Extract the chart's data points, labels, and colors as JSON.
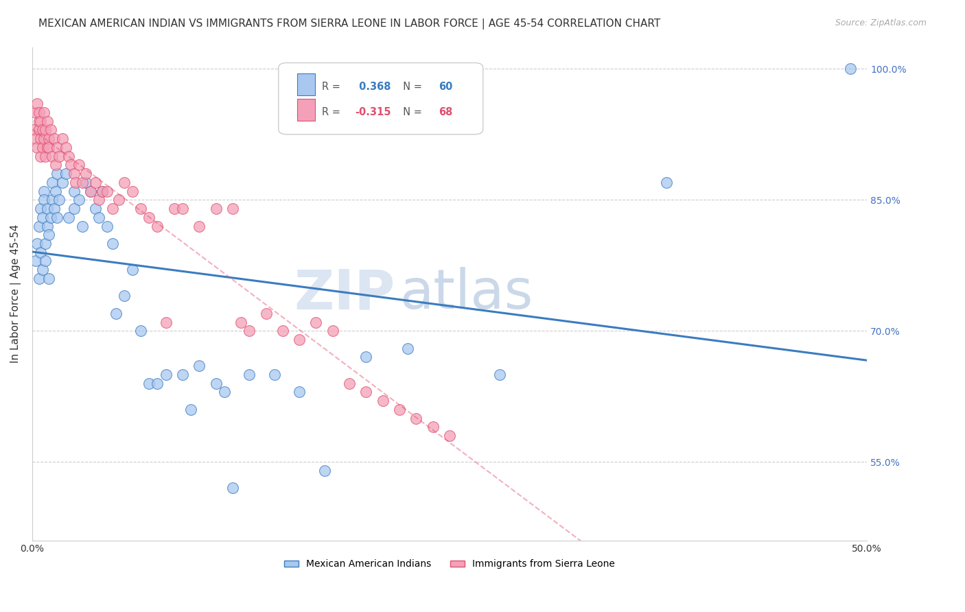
{
  "title": "MEXICAN AMERICAN INDIAN VS IMMIGRANTS FROM SIERRA LEONE IN LABOR FORCE | AGE 45-54 CORRELATION CHART",
  "source": "Source: ZipAtlas.com",
  "ylabel": "In Labor Force | Age 45-54",
  "xmin": 0.0,
  "xmax": 0.5,
  "ymin": 0.46,
  "ymax": 1.025,
  "yticks": [
    0.55,
    0.7,
    0.85,
    1.0
  ],
  "ytick_labels": [
    "55.0%",
    "70.0%",
    "85.0%",
    "100.0%"
  ],
  "xticks": [
    0.0,
    0.1,
    0.2,
    0.3,
    0.4,
    0.5
  ],
  "legend_blue_label": "Mexican American Indians",
  "legend_pink_label": "Immigrants from Sierra Leone",
  "R_blue": 0.368,
  "N_blue": 60,
  "R_pink": -0.315,
  "N_pink": 68,
  "blue_color": "#a8c8f0",
  "pink_color": "#f4a0b8",
  "blue_line_color": "#3a7cc0",
  "pink_line_color": "#e05070",
  "watermark_zip": "ZIP",
  "watermark_atlas": "atlas",
  "title_fontsize": 11,
  "axis_label_fontsize": 11,
  "tick_fontsize": 10,
  "blue_points_x": [
    0.002,
    0.003,
    0.004,
    0.004,
    0.005,
    0.005,
    0.006,
    0.006,
    0.007,
    0.007,
    0.008,
    0.008,
    0.009,
    0.009,
    0.01,
    0.01,
    0.011,
    0.012,
    0.012,
    0.013,
    0.014,
    0.015,
    0.015,
    0.016,
    0.018,
    0.02,
    0.022,
    0.025,
    0.025,
    0.028,
    0.03,
    0.032,
    0.035,
    0.038,
    0.04,
    0.042,
    0.045,
    0.048,
    0.05,
    0.055,
    0.06,
    0.065,
    0.07,
    0.075,
    0.08,
    0.09,
    0.095,
    0.1,
    0.11,
    0.115,
    0.12,
    0.13,
    0.145,
    0.16,
    0.175,
    0.2,
    0.225,
    0.28,
    0.38,
    0.49
  ],
  "blue_points_y": [
    0.78,
    0.8,
    0.76,
    0.82,
    0.84,
    0.79,
    0.77,
    0.83,
    0.86,
    0.85,
    0.8,
    0.78,
    0.82,
    0.84,
    0.76,
    0.81,
    0.83,
    0.87,
    0.85,
    0.84,
    0.86,
    0.88,
    0.83,
    0.85,
    0.87,
    0.88,
    0.83,
    0.86,
    0.84,
    0.85,
    0.82,
    0.87,
    0.86,
    0.84,
    0.83,
    0.86,
    0.82,
    0.8,
    0.72,
    0.74,
    0.77,
    0.7,
    0.64,
    0.64,
    0.65,
    0.65,
    0.61,
    0.66,
    0.64,
    0.63,
    0.52,
    0.65,
    0.65,
    0.63,
    0.54,
    0.67,
    0.68,
    0.65,
    0.87,
    1.0
  ],
  "pink_points_x": [
    0.001,
    0.002,
    0.002,
    0.003,
    0.003,
    0.004,
    0.004,
    0.004,
    0.005,
    0.005,
    0.005,
    0.006,
    0.006,
    0.007,
    0.007,
    0.008,
    0.008,
    0.009,
    0.009,
    0.01,
    0.01,
    0.011,
    0.012,
    0.013,
    0.014,
    0.015,
    0.016,
    0.018,
    0.02,
    0.022,
    0.023,
    0.025,
    0.026,
    0.028,
    0.03,
    0.032,
    0.035,
    0.038,
    0.04,
    0.042,
    0.045,
    0.048,
    0.052,
    0.055,
    0.06,
    0.065,
    0.07,
    0.075,
    0.08,
    0.085,
    0.09,
    0.1,
    0.11,
    0.12,
    0.125,
    0.13,
    0.14,
    0.15,
    0.16,
    0.17,
    0.18,
    0.19,
    0.2,
    0.21,
    0.22,
    0.23,
    0.24,
    0.25
  ],
  "pink_points_y": [
    0.93,
    0.95,
    0.92,
    0.96,
    0.91,
    0.94,
    0.93,
    0.95,
    0.9,
    0.92,
    0.94,
    0.93,
    0.91,
    0.95,
    0.92,
    0.9,
    0.93,
    0.91,
    0.94,
    0.92,
    0.91,
    0.93,
    0.9,
    0.92,
    0.89,
    0.91,
    0.9,
    0.92,
    0.91,
    0.9,
    0.89,
    0.88,
    0.87,
    0.89,
    0.87,
    0.88,
    0.86,
    0.87,
    0.85,
    0.86,
    0.86,
    0.84,
    0.85,
    0.87,
    0.86,
    0.84,
    0.83,
    0.82,
    0.71,
    0.84,
    0.84,
    0.82,
    0.84,
    0.84,
    0.71,
    0.7,
    0.72,
    0.7,
    0.69,
    0.71,
    0.7,
    0.64,
    0.63,
    0.62,
    0.61,
    0.6,
    0.59,
    0.58
  ]
}
